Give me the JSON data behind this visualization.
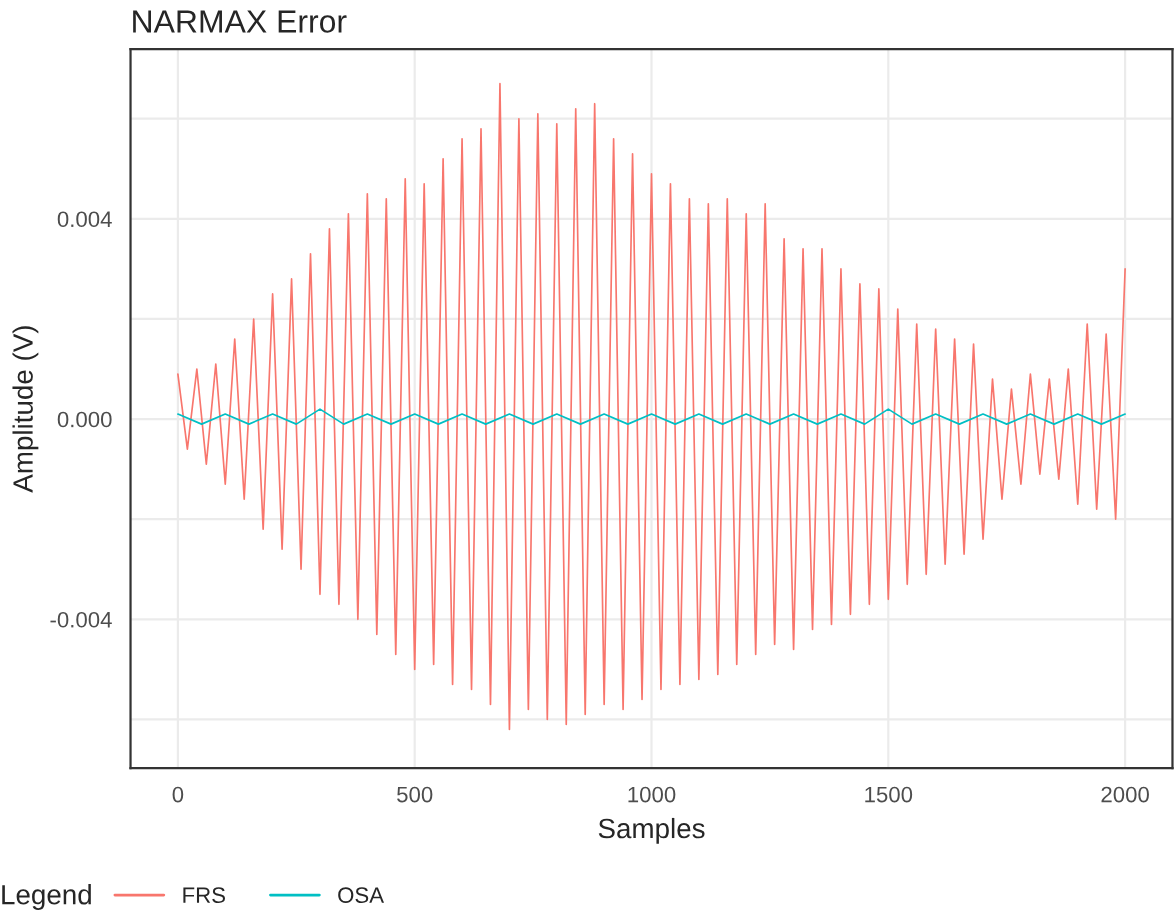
{
  "chart_data": {
    "type": "line",
    "title": "NARMAX Error",
    "xlabel": "Samples",
    "ylabel": "Amplitude (V)",
    "legend_title": "Legend",
    "legend": "bottom",
    "grid": true,
    "marker": "none",
    "line_style": "solid",
    "xlim": [
      -100,
      2100
    ],
    "xticks": [
      0,
      500,
      1000,
      1500,
      2000
    ],
    "ylim": [
      -0.00697,
      0.00739
    ],
    "yticks": [
      {
        "value": -0.006,
        "label": null
      },
      {
        "value": -0.004,
        "label": "-0.004"
      },
      {
        "value": -0.002,
        "label": null
      },
      {
        "value": 0,
        "label": "0.000"
      },
      {
        "value": 0.002,
        "label": null
      },
      {
        "value": 0.004,
        "label": "0.004"
      },
      {
        "value": 0.006,
        "label": null
      }
    ],
    "series": [
      {
        "name": "FRS",
        "color": "#f8766d",
        "x": [
          0,
          20,
          40,
          60,
          80,
          100,
          120,
          140,
          160,
          180,
          200,
          220,
          240,
          260,
          280,
          300,
          320,
          340,
          360,
          380,
          400,
          420,
          440,
          460,
          480,
          500,
          520,
          540,
          560,
          580,
          600,
          620,
          640,
          660,
          680,
          700,
          720,
          740,
          760,
          780,
          800,
          820,
          840,
          860,
          880,
          900,
          920,
          940,
          960,
          980,
          1000,
          1020,
          1040,
          1060,
          1080,
          1100,
          1120,
          1140,
          1160,
          1180,
          1200,
          1220,
          1240,
          1260,
          1280,
          1300,
          1320,
          1340,
          1360,
          1380,
          1400,
          1420,
          1440,
          1460,
          1480,
          1500,
          1520,
          1540,
          1560,
          1580,
          1600,
          1620,
          1640,
          1660,
          1680,
          1700,
          1720,
          1740,
          1760,
          1780,
          1800,
          1820,
          1840,
          1860,
          1880,
          1900,
          1920,
          1940,
          1960,
          1980,
          2000
        ],
        "values": [
          0.0009,
          -0.0006,
          0.001,
          -0.0009,
          0.0011,
          -0.0013,
          0.0016,
          -0.0016,
          0.002,
          -0.0022,
          0.0025,
          -0.0026,
          0.0028,
          -0.003,
          0.0033,
          -0.0035,
          0.0038,
          -0.0037,
          0.0041,
          -0.004,
          0.0045,
          -0.0043,
          0.0044,
          -0.0047,
          0.0048,
          -0.005,
          0.0047,
          -0.0049,
          0.0052,
          -0.0053,
          0.0056,
          -0.0054,
          0.0058,
          -0.0057,
          0.0067,
          -0.0062,
          0.006,
          -0.0058,
          0.0061,
          -0.006,
          0.0059,
          -0.0061,
          0.0062,
          -0.0059,
          0.0063,
          -0.0057,
          0.0056,
          -0.0058,
          0.0053,
          -0.0056,
          0.0049,
          -0.0054,
          0.0047,
          -0.0053,
          0.0044,
          -0.0052,
          0.0043,
          -0.0051,
          0.0044,
          -0.0049,
          0.0041,
          -0.0047,
          0.0043,
          -0.0045,
          0.0036,
          -0.0046,
          0.0034,
          -0.0042,
          0.0034,
          -0.0041,
          0.003,
          -0.0039,
          0.0027,
          -0.0037,
          0.0026,
          -0.0036,
          0.0022,
          -0.0033,
          0.0019,
          -0.0031,
          0.0018,
          -0.0029,
          0.0016,
          -0.0027,
          0.0015,
          -0.0024,
          0.0008,
          -0.0016,
          0.0006,
          -0.0013,
          0.0009,
          -0.0011,
          0.0008,
          -0.0012,
          0.001,
          -0.0017,
          0.0019,
          -0.0018,
          0.0017,
          -0.002,
          0.003
        ]
      },
      {
        "name": "OSA",
        "color": "#00bfc4",
        "x": [
          0,
          50,
          100,
          150,
          200,
          250,
          300,
          350,
          400,
          450,
          500,
          550,
          600,
          650,
          700,
          750,
          800,
          850,
          900,
          950,
          1000,
          1050,
          1100,
          1150,
          1200,
          1250,
          1300,
          1350,
          1400,
          1450,
          1500,
          1550,
          1600,
          1650,
          1700,
          1750,
          1800,
          1850,
          1900,
          1950,
          2000
        ],
        "values": [
          0.0001,
          -0.0001,
          0.0001,
          -0.0001,
          0.0001,
          -0.0001,
          0.0002,
          -0.0001,
          0.0001,
          -0.0001,
          0.0001,
          -0.0001,
          0.0001,
          -0.0001,
          0.0001,
          -0.0001,
          0.0001,
          -0.0001,
          0.0001,
          -0.0001,
          0.0001,
          -0.0001,
          0.0001,
          -0.0001,
          0.0001,
          -0.0001,
          0.0001,
          -0.0001,
          0.0001,
          -0.0001,
          0.0002,
          -0.0001,
          0.0001,
          -0.0001,
          0.0001,
          -0.0001,
          0.0001,
          -0.0001,
          0.0001,
          -0.0001,
          0.0001
        ]
      }
    ]
  }
}
